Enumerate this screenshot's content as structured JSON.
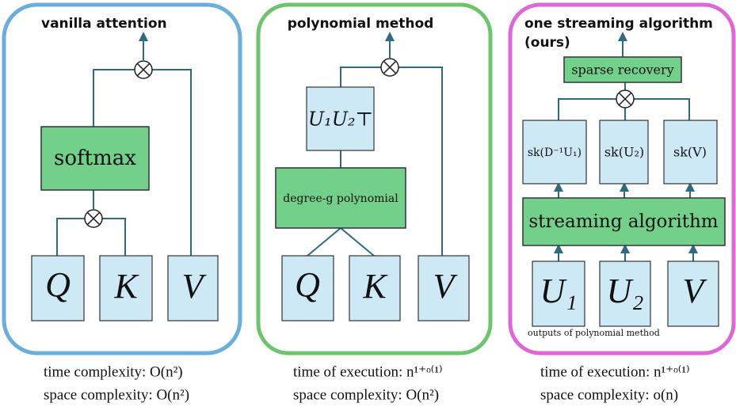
{
  "panels": [
    {
      "title": "vanilla attention",
      "nodes": [
        "softmax",
        "Q",
        "K",
        "V"
      ],
      "captions": [
        "time complexity: O(n²)",
        "space complexity: O(n²)"
      ]
    },
    {
      "title": "polynomial method",
      "nodes": [
        "U₁U₂⊤",
        "degree-g polynomial",
        "Q",
        "K",
        "V"
      ],
      "captions": [
        "time of execution: n¹⁺ᵒ⁽¹⁾",
        "space complexity: O(n²)"
      ]
    },
    {
      "title": "one streaming algorithm",
      "subtitle": "(ours)",
      "nodes": [
        "sparse recovery",
        "sk(D⁻¹U₁)",
        "sk(U₂)",
        "sk(V)",
        "streaming algorithm",
        "U₁",
        "U₂",
        "V"
      ],
      "note": "outputs of polynomial method",
      "captions": [
        "time of execution: n¹⁺ᵒ⁽¹⁾",
        "space complexity: o(n)"
      ]
    }
  ]
}
